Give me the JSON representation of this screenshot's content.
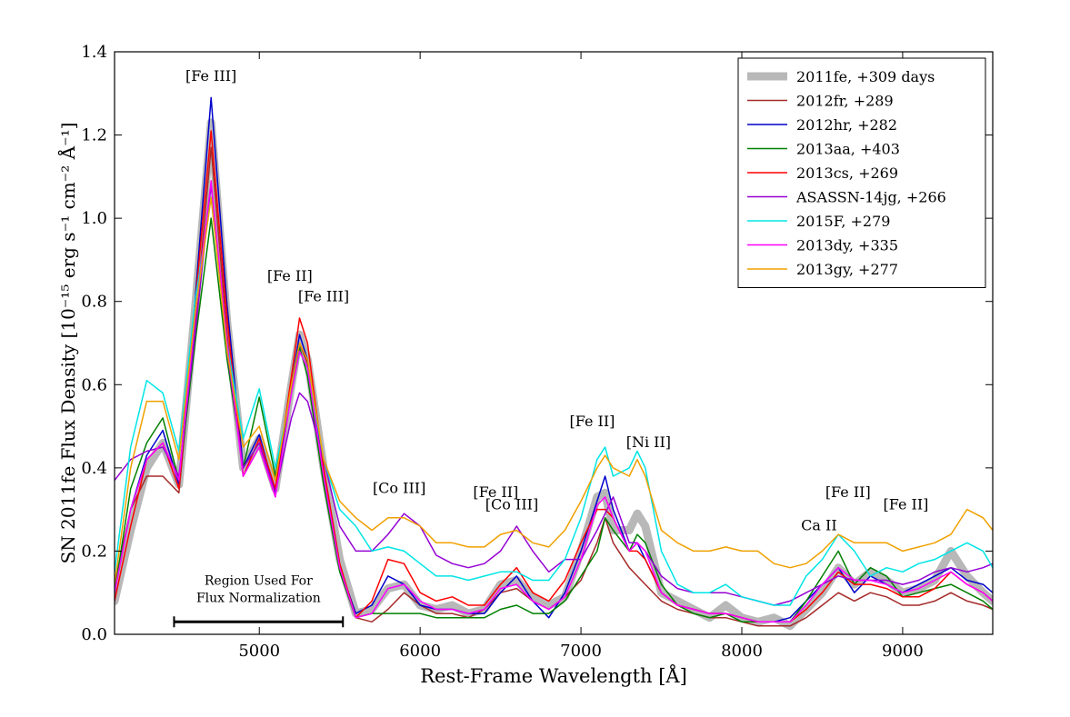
{
  "chart_data": {
    "type": "line",
    "xlabel": "Rest-Frame Wavelength [Å]",
    "ylabel": "SN 2011fe Flux Density [10⁻¹⁵ erg s⁻¹ cm⁻² Å⁻¹]",
    "xlim": [
      4100,
      9560
    ],
    "ylim": [
      0.0,
      1.4
    ],
    "xticks": [
      5000,
      6000,
      7000,
      8000,
      9000
    ],
    "xtick_labels": [
      "5000",
      "6000",
      "7000",
      "8000",
      "9000"
    ],
    "yticks": [
      0.0,
      0.2,
      0.4,
      0.6,
      0.8,
      1.0,
      1.2,
      1.4
    ],
    "ytick_labels": [
      "0.0",
      "0.2",
      "0.4",
      "0.6",
      "0.8",
      "1.0",
      "1.2",
      "1.4"
    ],
    "legend_position": "top-right",
    "x": [
      4100,
      4200,
      4300,
      4400,
      4500,
      4600,
      4700,
      4800,
      4900,
      5000,
      5100,
      5200,
      5250,
      5300,
      5400,
      5500,
      5600,
      5700,
      5800,
      5900,
      6000,
      6100,
      6200,
      6300,
      6400,
      6500,
      6600,
      6700,
      6800,
      6900,
      7000,
      7100,
      7150,
      7200,
      7300,
      7350,
      7400,
      7500,
      7600,
      7700,
      7800,
      7900,
      8000,
      8100,
      8200,
      8300,
      8400,
      8500,
      8600,
      8700,
      8800,
      8900,
      9000,
      9100,
      9200,
      9300,
      9400,
      9500,
      9560
    ],
    "series": [
      {
        "name": "2011fe, +309 days",
        "color": "#b8b8b8",
        "width": 9,
        "values": [
          0.08,
          0.25,
          0.4,
          0.46,
          0.36,
          0.78,
          1.23,
          0.75,
          0.4,
          0.47,
          0.35,
          0.6,
          0.72,
          0.66,
          0.4,
          0.18,
          0.05,
          0.06,
          0.11,
          0.12,
          0.07,
          0.06,
          0.07,
          0.05,
          0.06,
          0.12,
          0.13,
          0.09,
          0.07,
          0.09,
          0.2,
          0.33,
          0.34,
          0.25,
          0.25,
          0.29,
          0.26,
          0.1,
          0.08,
          0.06,
          0.04,
          0.07,
          0.04,
          0.03,
          0.04,
          0.02,
          0.06,
          0.1,
          0.16,
          0.12,
          0.15,
          0.13,
          0.1,
          0.11,
          0.13,
          0.2,
          0.14,
          0.1,
          0.08
        ]
      },
      {
        "name": "2012fr, +289",
        "color": "#a52a2a",
        "width": 1.5,
        "values": [
          0.12,
          0.3,
          0.38,
          0.38,
          0.34,
          0.74,
          1.17,
          0.72,
          0.38,
          0.45,
          0.33,
          0.6,
          0.7,
          0.65,
          0.4,
          0.17,
          0.04,
          0.03,
          0.06,
          0.1,
          0.07,
          0.05,
          0.05,
          0.04,
          0.06,
          0.1,
          0.11,
          0.08,
          0.06,
          0.09,
          0.13,
          0.22,
          0.28,
          0.22,
          0.16,
          0.14,
          0.12,
          0.08,
          0.06,
          0.05,
          0.04,
          0.04,
          0.03,
          0.02,
          0.02,
          0.02,
          0.04,
          0.07,
          0.1,
          0.08,
          0.1,
          0.09,
          0.07,
          0.07,
          0.08,
          0.1,
          0.08,
          0.07,
          0.06
        ]
      },
      {
        "name": "2012hr, +282",
        "color": "#0000cc",
        "width": 1.5,
        "values": [
          0.1,
          0.3,
          0.43,
          0.49,
          0.36,
          0.8,
          1.29,
          0.79,
          0.4,
          0.48,
          0.34,
          0.6,
          0.72,
          0.66,
          0.38,
          0.16,
          0.05,
          0.07,
          0.14,
          0.12,
          0.07,
          0.06,
          0.06,
          0.05,
          0.05,
          0.1,
          0.14,
          0.08,
          0.04,
          0.1,
          0.2,
          0.32,
          0.38,
          0.3,
          0.2,
          0.22,
          0.18,
          0.1,
          0.07,
          0.06,
          0.05,
          0.05,
          0.04,
          0.03,
          0.03,
          0.04,
          0.08,
          0.12,
          0.16,
          0.1,
          0.14,
          0.12,
          0.1,
          0.12,
          0.14,
          0.16,
          0.13,
          0.12,
          0.1
        ]
      },
      {
        "name": "2013aa, +403",
        "color": "#008000",
        "width": 1.5,
        "values": [
          0.1,
          0.35,
          0.46,
          0.52,
          0.37,
          0.7,
          1.0,
          0.66,
          0.4,
          0.57,
          0.38,
          0.58,
          0.69,
          0.62,
          0.36,
          0.15,
          0.04,
          0.05,
          0.05,
          0.05,
          0.05,
          0.04,
          0.04,
          0.04,
          0.04,
          0.06,
          0.07,
          0.05,
          0.05,
          0.08,
          0.14,
          0.2,
          0.28,
          0.25,
          0.2,
          0.24,
          0.22,
          0.12,
          0.07,
          0.05,
          0.04,
          0.05,
          0.03,
          0.03,
          0.03,
          0.03,
          0.08,
          0.14,
          0.2,
          0.12,
          0.16,
          0.14,
          0.09,
          0.1,
          0.11,
          0.12,
          0.1,
          0.08,
          0.06
        ]
      },
      {
        "name": "2013cs, +269",
        "color": "#ff0000",
        "width": 1.5,
        "values": [
          0.08,
          0.26,
          0.42,
          0.46,
          0.35,
          0.79,
          1.21,
          0.76,
          0.38,
          0.47,
          0.35,
          0.62,
          0.76,
          0.7,
          0.4,
          0.17,
          0.04,
          0.08,
          0.18,
          0.17,
          0.1,
          0.08,
          0.09,
          0.07,
          0.07,
          0.12,
          0.16,
          0.1,
          0.08,
          0.13,
          0.22,
          0.3,
          0.3,
          0.28,
          0.2,
          0.2,
          0.18,
          0.1,
          0.07,
          0.06,
          0.05,
          0.05,
          0.04,
          0.03,
          0.03,
          0.03,
          0.06,
          0.1,
          0.15,
          0.12,
          0.12,
          0.11,
          0.09,
          0.09,
          0.11,
          0.15,
          0.12,
          0.1,
          0.08
        ]
      },
      {
        "name": "ASASSN-14jg, +266",
        "color": "#9400d3",
        "width": 1.5,
        "values": [
          0.37,
          0.42,
          0.44,
          0.45,
          0.38,
          0.72,
          1.08,
          0.68,
          0.4,
          0.46,
          0.34,
          0.52,
          0.58,
          0.56,
          0.42,
          0.26,
          0.2,
          0.2,
          0.24,
          0.29,
          0.26,
          0.19,
          0.17,
          0.16,
          0.17,
          0.2,
          0.26,
          0.2,
          0.15,
          0.18,
          0.18,
          0.25,
          0.29,
          0.33,
          0.22,
          0.22,
          0.2,
          0.14,
          0.11,
          0.1,
          0.1,
          0.1,
          0.09,
          0.08,
          0.07,
          0.08,
          0.1,
          0.12,
          0.14,
          0.13,
          0.13,
          0.13,
          0.12,
          0.13,
          0.15,
          0.16,
          0.15,
          0.16,
          0.17
        ]
      },
      {
        "name": "2015F, +279",
        "color": "#00e5e5",
        "width": 1.5,
        "values": [
          0.15,
          0.45,
          0.61,
          0.58,
          0.44,
          0.8,
          1.05,
          0.7,
          0.47,
          0.59,
          0.4,
          0.58,
          0.68,
          0.64,
          0.42,
          0.3,
          0.26,
          0.2,
          0.21,
          0.2,
          0.17,
          0.14,
          0.14,
          0.13,
          0.14,
          0.15,
          0.15,
          0.13,
          0.13,
          0.18,
          0.28,
          0.42,
          0.45,
          0.38,
          0.4,
          0.44,
          0.4,
          0.2,
          0.12,
          0.1,
          0.1,
          0.12,
          0.09,
          0.08,
          0.07,
          0.07,
          0.14,
          0.18,
          0.24,
          0.2,
          0.14,
          0.16,
          0.15,
          0.17,
          0.18,
          0.2,
          0.22,
          0.2,
          0.16
        ]
      },
      {
        "name": "2013dy, +335",
        "color": "#ff00ff",
        "width": 1.5,
        "values": [
          0.1,
          0.3,
          0.42,
          0.46,
          0.37,
          0.76,
          1.09,
          0.7,
          0.38,
          0.45,
          0.33,
          0.58,
          0.68,
          0.64,
          0.38,
          0.16,
          0.04,
          0.05,
          0.11,
          0.12,
          0.08,
          0.06,
          0.06,
          0.05,
          0.06,
          0.11,
          0.12,
          0.08,
          0.06,
          0.09,
          0.18,
          0.31,
          0.33,
          0.28,
          0.2,
          0.22,
          0.2,
          0.1,
          0.07,
          0.06,
          0.05,
          0.05,
          0.04,
          0.03,
          0.03,
          0.03,
          0.07,
          0.12,
          0.16,
          0.13,
          0.13,
          0.12,
          0.1,
          0.11,
          0.13,
          0.15,
          0.12,
          0.1,
          0.08
        ]
      },
      {
        "name": "2013gy, +277",
        "color": "#f0a000",
        "width": 1.5,
        "values": [
          0.12,
          0.4,
          0.56,
          0.56,
          0.42,
          0.77,
          1.05,
          0.68,
          0.45,
          0.5,
          0.37,
          0.6,
          0.7,
          0.66,
          0.42,
          0.32,
          0.28,
          0.25,
          0.28,
          0.28,
          0.26,
          0.22,
          0.22,
          0.21,
          0.21,
          0.24,
          0.25,
          0.22,
          0.21,
          0.25,
          0.32,
          0.4,
          0.43,
          0.4,
          0.38,
          0.42,
          0.38,
          0.25,
          0.22,
          0.2,
          0.2,
          0.21,
          0.2,
          0.2,
          0.17,
          0.16,
          0.17,
          0.2,
          0.24,
          0.22,
          0.22,
          0.22,
          0.2,
          0.21,
          0.22,
          0.24,
          0.3,
          0.28,
          0.25
        ]
      }
    ],
    "annotations": [
      {
        "text": "[Fe III]",
        "x": 4700,
        "y": 1.33
      },
      {
        "text": "[Fe II]",
        "x": 5190,
        "y": 0.85
      },
      {
        "text": "[Fe III]",
        "x": 5400,
        "y": 0.8
      },
      {
        "text": "[Co III]",
        "x": 5870,
        "y": 0.34
      },
      {
        "text": "[Fe II]",
        "x": 6470,
        "y": 0.33
      },
      {
        "text": "[Co III]",
        "x": 6570,
        "y": 0.3
      },
      {
        "text": "[Fe II]",
        "x": 7070,
        "y": 0.5
      },
      {
        "text": "[Ni II]",
        "x": 7420,
        "y": 0.45
      },
      {
        "text": "[Fe II]",
        "x": 8660,
        "y": 0.33
      },
      {
        "text": "[Fe II]",
        "x": 9020,
        "y": 0.3
      },
      {
        "text": "Ca II",
        "x": 8480,
        "y": 0.25
      }
    ],
    "region": {
      "label_line1": "Region Used For",
      "label_line2": "Flux Normalization",
      "x_start": 4470,
      "x_end": 5520,
      "y": 0.03
    }
  }
}
